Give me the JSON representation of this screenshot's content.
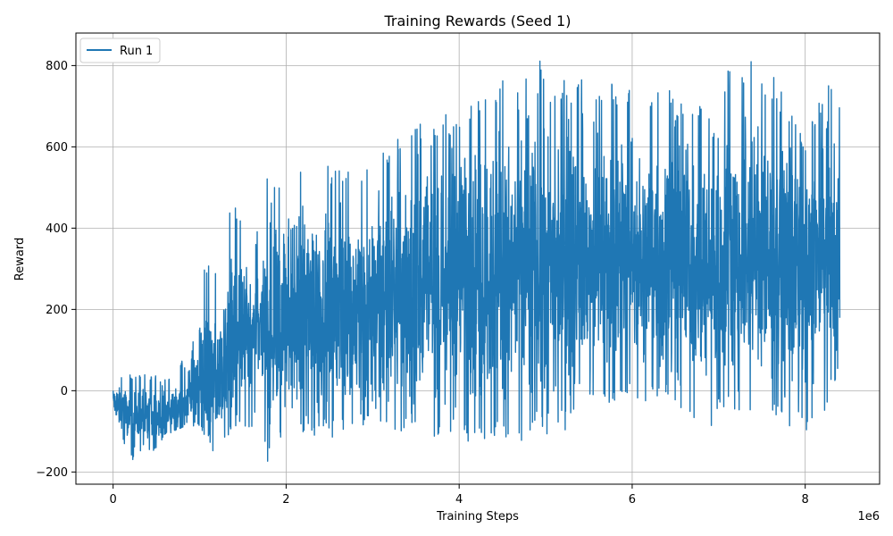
{
  "chart_data": {
    "type": "line",
    "title": "Training Rewards (Seed 1)",
    "xlabel": "Training Steps",
    "ylabel": "Reward",
    "x_offset_label": "1e6",
    "xlim": [
      -430000,
      8860000
    ],
    "ylim": [
      -230,
      880
    ],
    "xticks": [
      0,
      2000000,
      4000000,
      6000000,
      8000000
    ],
    "xtick_labels": [
      "0",
      "2",
      "4",
      "6",
      "8"
    ],
    "yticks": [
      -200,
      0,
      200,
      400,
      600,
      800
    ],
    "ytick_labels": [
      "−200",
      "0",
      "200",
      "400",
      "600",
      "800"
    ],
    "grid": true,
    "legend": {
      "position": "top-left",
      "entries": [
        "Run 1"
      ]
    },
    "series_color": "#1f77b4",
    "series": [
      {
        "name": "Run 1",
        "x_start": 0,
        "x_end": 8400000,
        "envelope_x": [
          0,
          200000,
          400000,
          600000,
          800000,
          1000000,
          1200000,
          1400000,
          1600000,
          1800000,
          2000000,
          2400000,
          2800000,
          3200000,
          3600000,
          4000000,
          4400000,
          4800000,
          5200000,
          5600000,
          6000000,
          6400000,
          6800000,
          7200000,
          7600000,
          8000000,
          8400000
        ],
        "envelope_min": [
          -60,
          -175,
          -170,
          -110,
          -90,
          -85,
          -170,
          -100,
          -100,
          -180,
          -130,
          -130,
          -110,
          -100,
          -110,
          -130,
          -140,
          -120,
          -100,
          -40,
          -20,
          -40,
          -100,
          -50,
          -50,
          -135,
          20
        ],
        "envelope_max": [
          40,
          40,
          45,
          30,
          85,
          320,
          330,
          480,
          345,
          545,
          545,
          565,
          540,
          610,
          680,
          690,
          740,
          830,
          775,
          770,
          750,
          745,
          710,
          828,
          790,
          630,
          828
        ],
        "mean_trend": [
          -40,
          -55,
          -70,
          -75,
          -70,
          -40,
          20,
          90,
          140,
          170,
          190,
          210,
          230,
          250,
          270,
          290,
          300,
          310,
          320,
          330,
          330,
          335,
          335,
          340,
          340,
          340,
          330
        ]
      }
    ]
  }
}
